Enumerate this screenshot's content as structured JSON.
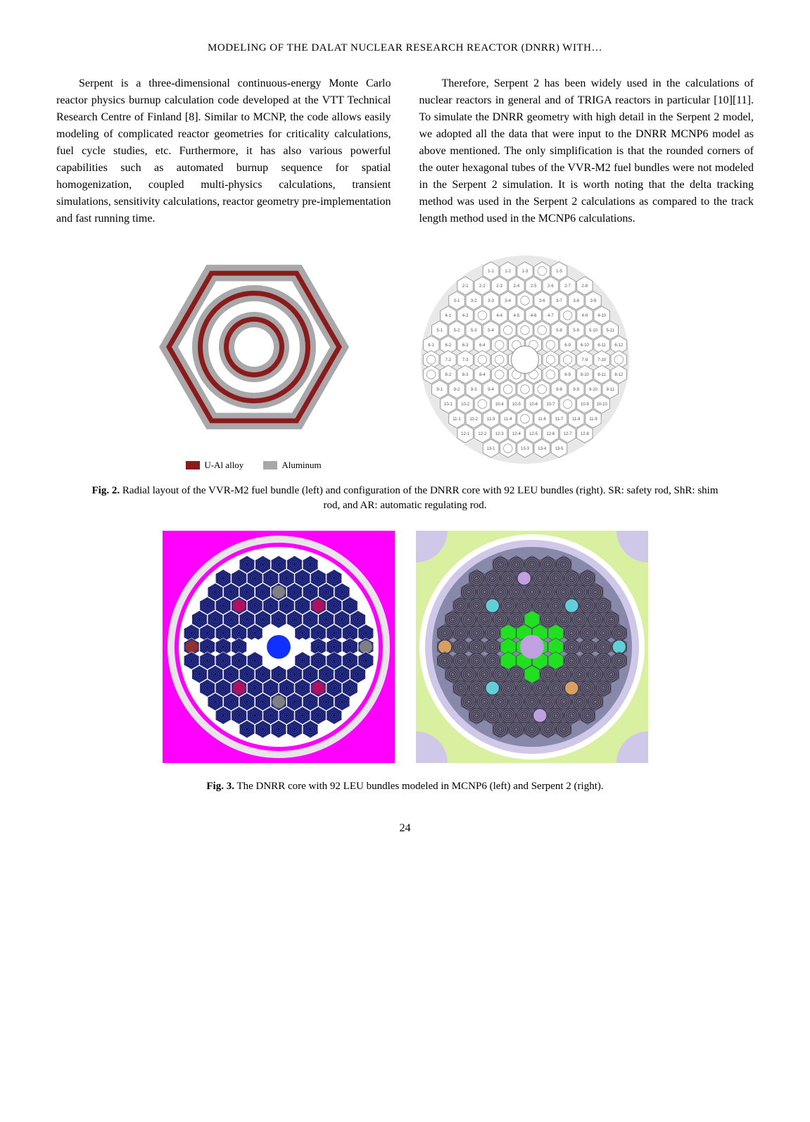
{
  "header": {
    "title": "MODELING OF THE DALAT NUCLEAR RESEARCH REACTOR (DNRR) WITH…"
  },
  "body": {
    "left_paragraph": "Serpent is a three-dimensional continuous-energy Monte Carlo reactor physics burnup calculation code developed at the VTT Technical Research Centre of Finland [8]. Similar to MCNP, the code allows easily modeling of complicated reactor geometries for criticality calculations, fuel cycle studies, etc. Furthermore, it has also various powerful capabilities such as automated burnup sequence for spatial homogenization, coupled multi-physics calculations, transient simulations, sensitivity calculations, reactor geometry pre-implementation and fast running time.",
    "right_paragraph": "Therefore, Serpent 2 has been widely used in the calculations of nuclear reactors in general and of TRIGA reactors in particular [10][11]. To simulate the DNRR geometry with high detail in the Serpent 2 model, we adopted all the data that were input to the DNRR MCNP6 model as above mentioned. The only simplification is that the rounded corners of the outer hexagonal tubes of the VVR-M2 fuel bundles were not modeled in the Serpent 2 simulation. It is worth noting that the delta tracking method was used in the Serpent 2 calculations as compared to the track length method used in the MCNP6 calculations."
  },
  "fig2": {
    "left": {
      "hex_outer_color": "#a8a8aa",
      "hex_fuel_color": "#8b1a1a",
      "hex_inner_bg": "#ffffff",
      "ring_colors": {
        "aluminum": "#a8a8aa",
        "fuel": "#8b1a1a",
        "gap": "#ffffff"
      },
      "legend": [
        {
          "color": "#8b1a1a",
          "label": "U-Al alloy"
        },
        {
          "color": "#a8a8aa",
          "label": "Aluminum"
        }
      ]
    },
    "right": {
      "bg_circle": "#e8e8e8",
      "hex_fill": "#ffffff",
      "hex_stroke": "#9a9a9a",
      "label_color": "#555555",
      "rows": [
        [
          "1-1",
          "1-2",
          "1-3",
          "",
          "1-5"
        ],
        [
          "2-1",
          "2-2",
          "2-3",
          "2-4",
          "2-5",
          "2-6",
          "2-7",
          "2-8"
        ],
        [
          "3-1",
          "3-2",
          "3-3",
          "3-4",
          "",
          "3-6",
          "3-7",
          "3-8",
          "3-9"
        ],
        [
          "4-1",
          "4-2",
          "",
          "4-4",
          "4-5",
          "4-6",
          "4-7",
          "",
          "4-9",
          "4-10"
        ],
        [
          "5-1",
          "5-2",
          "5-3",
          "5-4",
          "",
          "",
          "",
          "5-8",
          "5-9",
          "5-10",
          "5-11"
        ],
        [
          "6-1",
          "6-2",
          "6-3",
          "6-4",
          "",
          "",
          "",
          "",
          "6-9",
          "6-10",
          "6-11",
          "6-12"
        ],
        [
          "",
          "7-2",
          "7-3",
          "",
          "",
          "",
          "",
          "",
          "",
          "7-9",
          "7-10",
          ""
        ],
        [
          "",
          "8-2",
          "8-3",
          "8-4",
          "",
          "",
          "",
          "",
          "8-9",
          "8-10",
          "8-11",
          "8-12"
        ],
        [
          "9-1",
          "9-2",
          "9-3",
          "9-4",
          "",
          "",
          "",
          "9-8",
          "9-9",
          "9-10",
          "9-11"
        ],
        [
          "10-1",
          "10-2",
          "",
          "10-4",
          "10-5",
          "10-6",
          "10-7",
          "",
          "10-9",
          "10-10"
        ],
        [
          "11-1",
          "11-2",
          "11-3",
          "11-4",
          "",
          "11-6",
          "11-7",
          "11-8",
          "11-9"
        ],
        [
          "12-1",
          "12-2",
          "12-3",
          "12-4",
          "12-5",
          "12-6",
          "12-7",
          "12-8"
        ],
        [
          "13-1",
          "",
          "13-3",
          "13-4",
          "13-5"
        ]
      ]
    },
    "caption_bold": "Fig. 2.",
    "caption_text": " Radial layout of the VVR-M2 fuel bundle (left) and configuration of the DNRR core with 92 LEU bundles (right). SR: safety rod, ShR: shim rod, and AR: automatic regulating rod."
  },
  "fig3": {
    "left": {
      "bg": "#ff00ff",
      "outer_ring": "#e6e6e6",
      "core_bg": "#ffffff",
      "fuel_hex": "#151560",
      "center": "#1030ff",
      "rod_a": "#b01060",
      "rod_b": "#808080",
      "rod_c": "#903030"
    },
    "right": {
      "bg": "#d8f0a0",
      "outer_ring1": "#ffffff",
      "outer_ring2": "#d0c8e8",
      "core_bg": "#8888aa",
      "fuel_hex": "#706880",
      "center_hex": "#20e020",
      "center_circle": "#c0a0e0",
      "rod_a": "#60d0d8",
      "rod_b": "#d8a060",
      "rod_c": "#c0a0e0"
    },
    "caption_bold": "Fig. 3.",
    "caption_text": " The DNRR core with 92 LEU bundles modeled in MCNP6 (left) and Serpent 2 (right)."
  },
  "page_number": "24"
}
